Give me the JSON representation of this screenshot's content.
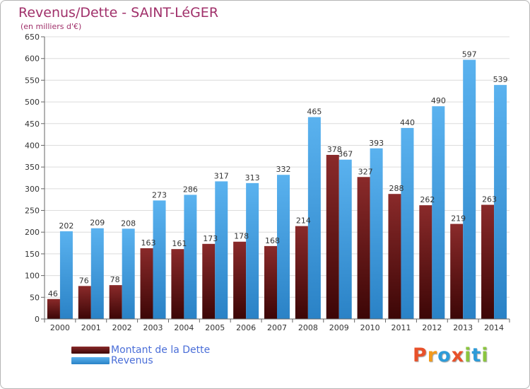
{
  "title": "Revenus/Dette - SAINT-LéGER",
  "subtitle": "(en milliers d'€)",
  "logo": "Proxiti",
  "colors": {
    "title": "#a0306a",
    "dette_top": "#8a2a2a",
    "dette_bottom": "#3c0606",
    "revenus_top": "#5ab2ef",
    "revenus_bottom": "#2a82c6",
    "logo": [
      "#e8512a",
      "#f29a1c",
      "#2d9bd8",
      "#e8512a",
      "#8bc53f",
      "#2d9bd8",
      "#8bc53f"
    ]
  },
  "chart_data": {
    "type": "bar",
    "categories": [
      "2000",
      "2001",
      "2002",
      "2003",
      "2004",
      "2005",
      "2006",
      "2007",
      "2008",
      "2009",
      "2010",
      "2011",
      "2012",
      "2013",
      "2014"
    ],
    "series": [
      {
        "name": "Montant de la Dette",
        "values": [
          46,
          76,
          78,
          163,
          161,
          173,
          178,
          168,
          214,
          378,
          327,
          288,
          262,
          219,
          263
        ]
      },
      {
        "name": "Revenus",
        "values": [
          202,
          209,
          208,
          273,
          286,
          317,
          313,
          332,
          465,
          367,
          393,
          440,
          490,
          597,
          539
        ]
      }
    ],
    "ylim": [
      0,
      650
    ],
    "yticks": [
      0,
      50,
      100,
      150,
      200,
      250,
      300,
      350,
      400,
      450,
      500,
      550,
      600,
      650
    ],
    "grid": true,
    "legend": "bottom-left"
  }
}
